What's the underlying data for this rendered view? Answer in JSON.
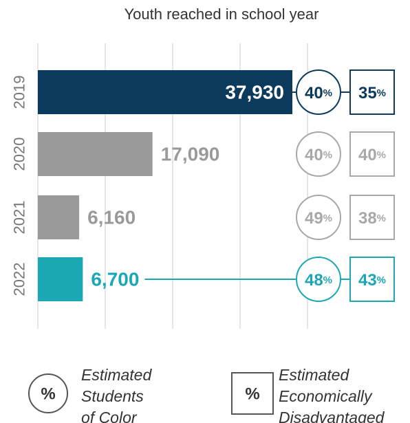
{
  "chart_data": {
    "type": "bar",
    "orientation": "horizontal",
    "title": "Youth reached in school year",
    "categories": [
      "2019",
      "2020",
      "2021",
      "2022"
    ],
    "values": [
      37930,
      17090,
      6160,
      6700
    ],
    "value_labels": [
      "37,930",
      "17,090",
      "6,160",
      "6,700"
    ],
    "students_of_color_pct": [
      40,
      40,
      49,
      48
    ],
    "economically_disadvantaged_pct": [
      35,
      40,
      38,
      43
    ],
    "pct_symbol": "%",
    "bar_colors": [
      "#0c3a5c",
      "#9a9a9a",
      "#9a9a9a",
      "#1ba7b3"
    ],
    "highlight_colors": [
      "#0c3a5c",
      "#a8a8a8",
      "#a8a8a8",
      "#1ba7b3"
    ],
    "connector_line_for": [
      "2022"
    ],
    "grid": true,
    "legend": {
      "placement": "bottom",
      "items": [
        {
          "symbol": "%",
          "shape": "circle",
          "lines": [
            "Estimated",
            "Students",
            "of Color"
          ]
        },
        {
          "symbol": "%",
          "shape": "square",
          "lines": [
            "Estimated",
            "Economically",
            "Disadvantaged"
          ]
        }
      ]
    }
  }
}
